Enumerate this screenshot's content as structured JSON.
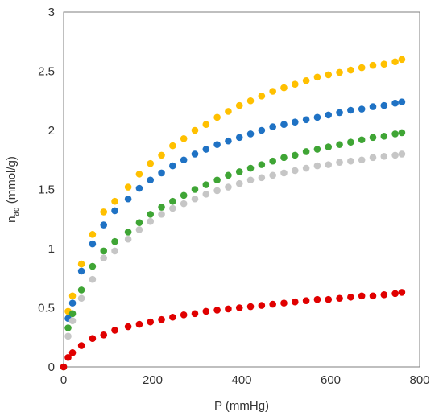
{
  "chart_data": {
    "type": "scatter",
    "title": "",
    "xlabel": "P (mmHg)",
    "ylabel": {
      "main": "n",
      "sub": "ad",
      "rest": " (mmol/g)"
    },
    "xlim": [
      0,
      800
    ],
    "ylim": [
      0,
      3
    ],
    "xticks": [
      0,
      200,
      400,
      600,
      800
    ],
    "yticks": [
      0,
      0.5,
      1,
      1.5,
      2,
      2.5,
      3
    ],
    "xtick_labels": [
      "0",
      "200",
      "400",
      "600",
      "800"
    ],
    "ytick_labels": [
      "0",
      "0.5",
      "1",
      "1.5",
      "2",
      "2.5",
      "3"
    ],
    "grid": false,
    "legend": "none",
    "x": [
      0,
      10,
      20,
      40,
      65,
      90,
      115,
      145,
      170,
      195,
      220,
      245,
      270,
      295,
      320,
      345,
      370,
      395,
      420,
      445,
      470,
      495,
      520,
      545,
      570,
      595,
      620,
      645,
      670,
      695,
      720,
      745,
      760
    ],
    "series": [
      {
        "color": "#ffc000",
        "values": [
          0,
          0.47,
          0.6,
          0.87,
          1.12,
          1.31,
          1.4,
          1.52,
          1.63,
          1.72,
          1.79,
          1.87,
          1.93,
          2.0,
          2.05,
          2.11,
          2.16,
          2.21,
          2.25,
          2.29,
          2.33,
          2.36,
          2.39,
          2.42,
          2.45,
          2.47,
          2.49,
          2.51,
          2.53,
          2.55,
          2.56,
          2.58,
          2.6
        ]
      },
      {
        "color": "#1f72c4",
        "values": [
          0,
          0.41,
          0.54,
          0.81,
          1.04,
          1.2,
          1.32,
          1.42,
          1.51,
          1.58,
          1.64,
          1.7,
          1.75,
          1.8,
          1.84,
          1.88,
          1.91,
          1.94,
          1.97,
          2.0,
          2.03,
          2.05,
          2.07,
          2.09,
          2.11,
          2.13,
          2.15,
          2.17,
          2.18,
          2.2,
          2.21,
          2.23,
          2.24
        ]
      },
      {
        "color": "#3fa535",
        "values": [
          0,
          0.33,
          0.45,
          0.65,
          0.85,
          0.98,
          1.06,
          1.14,
          1.22,
          1.29,
          1.35,
          1.4,
          1.45,
          1.5,
          1.54,
          1.58,
          1.62,
          1.65,
          1.68,
          1.71,
          1.74,
          1.77,
          1.79,
          1.82,
          1.84,
          1.86,
          1.88,
          1.9,
          1.92,
          1.94,
          1.95,
          1.97,
          1.98
        ]
      },
      {
        "color": "#c6c6c6",
        "values": [
          0,
          0.26,
          0.39,
          0.58,
          0.74,
          0.92,
          0.98,
          1.08,
          1.16,
          1.23,
          1.29,
          1.34,
          1.38,
          1.42,
          1.46,
          1.49,
          1.52,
          1.55,
          1.58,
          1.6,
          1.62,
          1.64,
          1.66,
          1.68,
          1.7,
          1.71,
          1.73,
          1.74,
          1.75,
          1.77,
          1.78,
          1.79,
          1.8
        ]
      },
      {
        "color": "#e00000",
        "values": [
          0,
          0.08,
          0.12,
          0.18,
          0.24,
          0.27,
          0.31,
          0.34,
          0.36,
          0.38,
          0.4,
          0.42,
          0.44,
          0.45,
          0.47,
          0.48,
          0.49,
          0.5,
          0.51,
          0.52,
          0.53,
          0.54,
          0.55,
          0.56,
          0.57,
          0.57,
          0.58,
          0.59,
          0.6,
          0.6,
          0.61,
          0.62,
          0.63
        ]
      }
    ]
  }
}
